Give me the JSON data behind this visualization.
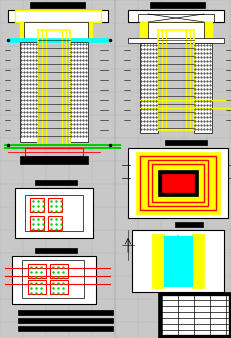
{
  "bg_color": "#c8c8c8",
  "grid_color": "#d0d0d0",
  "line_color": "#000000",
  "yellow": "#ffff00",
  "red": "#ff0000",
  "green": "#00cc00",
  "cyan": "#00ffff",
  "white": "#ffffff",
  "fig_width": 2.32,
  "fig_height": 3.38,
  "dpi": 100
}
